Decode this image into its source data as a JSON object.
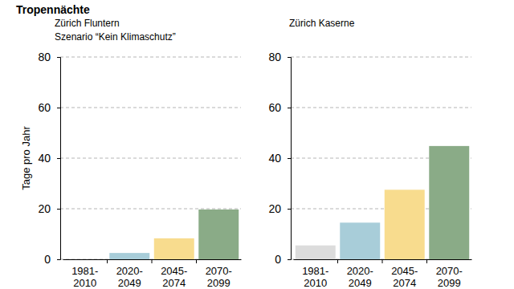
{
  "chart_data": [
    {
      "type": "bar",
      "title": "Tropennächte",
      "subtitle": "Zürich Fluntern",
      "annotations": [
        "Szenario “Kein Klimaschutz”"
      ],
      "ylabel": "Tage pro Jahr",
      "categories": [
        "1981-2010",
        "2020-2049",
        "2045-2074",
        "2070-2099"
      ],
      "values": [
        0,
        2.5,
        8.3,
        19.7
      ],
      "colors": [
        "#dcdcdc",
        "#a8cdd9",
        "#f8dc8e",
        "#8aab87"
      ],
      "ylim": [
        0,
        80
      ],
      "yticks": [
        0,
        20,
        40,
        60,
        80
      ],
      "grid": true
    },
    {
      "type": "bar",
      "subtitle": "Zürich Kaserne",
      "categories": [
        "1981-2010",
        "2020-2049",
        "2045-2074",
        "2070-2099"
      ],
      "values": [
        5.5,
        14.5,
        27.5,
        44.8
      ],
      "colors": [
        "#dcdcdc",
        "#a8cdd9",
        "#f8dc8e",
        "#8aab87"
      ],
      "ylim": [
        0,
        80
      ],
      "yticks": [
        0,
        20,
        40,
        60,
        80
      ],
      "grid": true
    }
  ]
}
